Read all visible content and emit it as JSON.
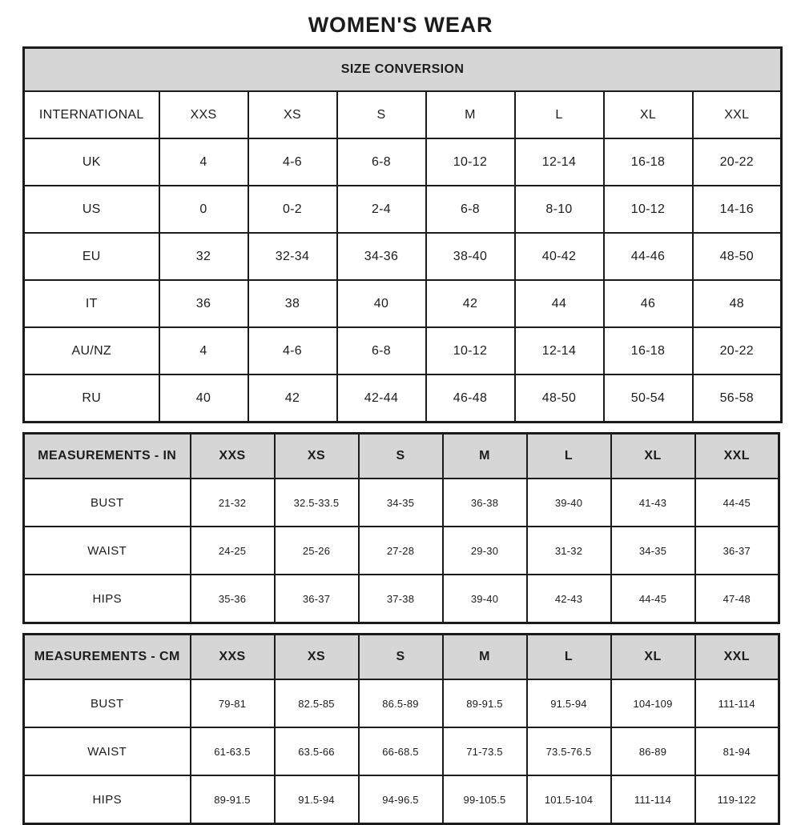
{
  "title": "WOMEN'S WEAR",
  "colors": {
    "header_bg": "#d6d6d6",
    "border": "#1b1b1b",
    "text": "#1c1c1c",
    "background": "#ffffff"
  },
  "tables": [
    {
      "name": "size-conversion",
      "banner": "SIZE CONVERSION",
      "columns": [
        "INTERNATIONAL",
        "XXS",
        "XS",
        "S",
        "M",
        "L",
        "XL",
        "XXL"
      ],
      "rows": [
        {
          "label": "UK",
          "values": [
            "4",
            "4-6",
            "6-8",
            "10-12",
            "12-14",
            "16-18",
            "20-22"
          ]
        },
        {
          "label": "US",
          "values": [
            "0",
            "0-2",
            "2-4",
            "6-8",
            "8-10",
            "10-12",
            "14-16"
          ]
        },
        {
          "label": "EU",
          "values": [
            "32",
            "32-34",
            "34-36",
            "38-40",
            "40-42",
            "44-46",
            "48-50"
          ]
        },
        {
          "label": "IT",
          "values": [
            "36",
            "38",
            "40",
            "42",
            "44",
            "46",
            "48"
          ]
        },
        {
          "label": "AU/NZ",
          "values": [
            "4",
            "4-6",
            "6-8",
            "10-12",
            "12-14",
            "16-18",
            "20-22"
          ]
        },
        {
          "label": "RU",
          "values": [
            "40",
            "42",
            "42-44",
            "46-48",
            "48-50",
            "50-54",
            "56-58"
          ]
        }
      ]
    },
    {
      "name": "measurements-in",
      "columns": [
        "MEASUREMENTS - IN",
        "XXS",
        "XS",
        "S",
        "M",
        "L",
        "XL",
        "XXL"
      ],
      "rows": [
        {
          "label": "BUST",
          "values": [
            "21-32",
            "32.5-33.5",
            "34-35",
            "36-38",
            "39-40",
            "41-43",
            "44-45"
          ]
        },
        {
          "label": "WAIST",
          "values": [
            "24-25",
            "25-26",
            "27-28",
            "29-30",
            "31-32",
            "34-35",
            "36-37"
          ]
        },
        {
          "label": "HIPS",
          "values": [
            "35-36",
            "36-37",
            "37-38",
            "39-40",
            "42-43",
            "44-45",
            "47-48"
          ]
        }
      ]
    },
    {
      "name": "measurements-cm",
      "columns": [
        "MEASUREMENTS - CM",
        "XXS",
        "XS",
        "S",
        "M",
        "L",
        "XL",
        "XXL"
      ],
      "rows": [
        {
          "label": "BUST",
          "values": [
            "79-81",
            "82.5-85",
            "86.5-89",
            "89-91.5",
            "91.5-94",
            "104-109",
            "111-114"
          ]
        },
        {
          "label": "WAIST",
          "values": [
            "61-63.5",
            "63.5-66",
            "66-68.5",
            "71-73.5",
            "73.5-76.5",
            "86-89",
            "81-94"
          ]
        },
        {
          "label": "HIPS",
          "values": [
            "89-91.5",
            "91.5-94",
            "94-96.5",
            "99-105.5",
            "101.5-104",
            "111-114",
            "119-122"
          ]
        }
      ]
    }
  ]
}
